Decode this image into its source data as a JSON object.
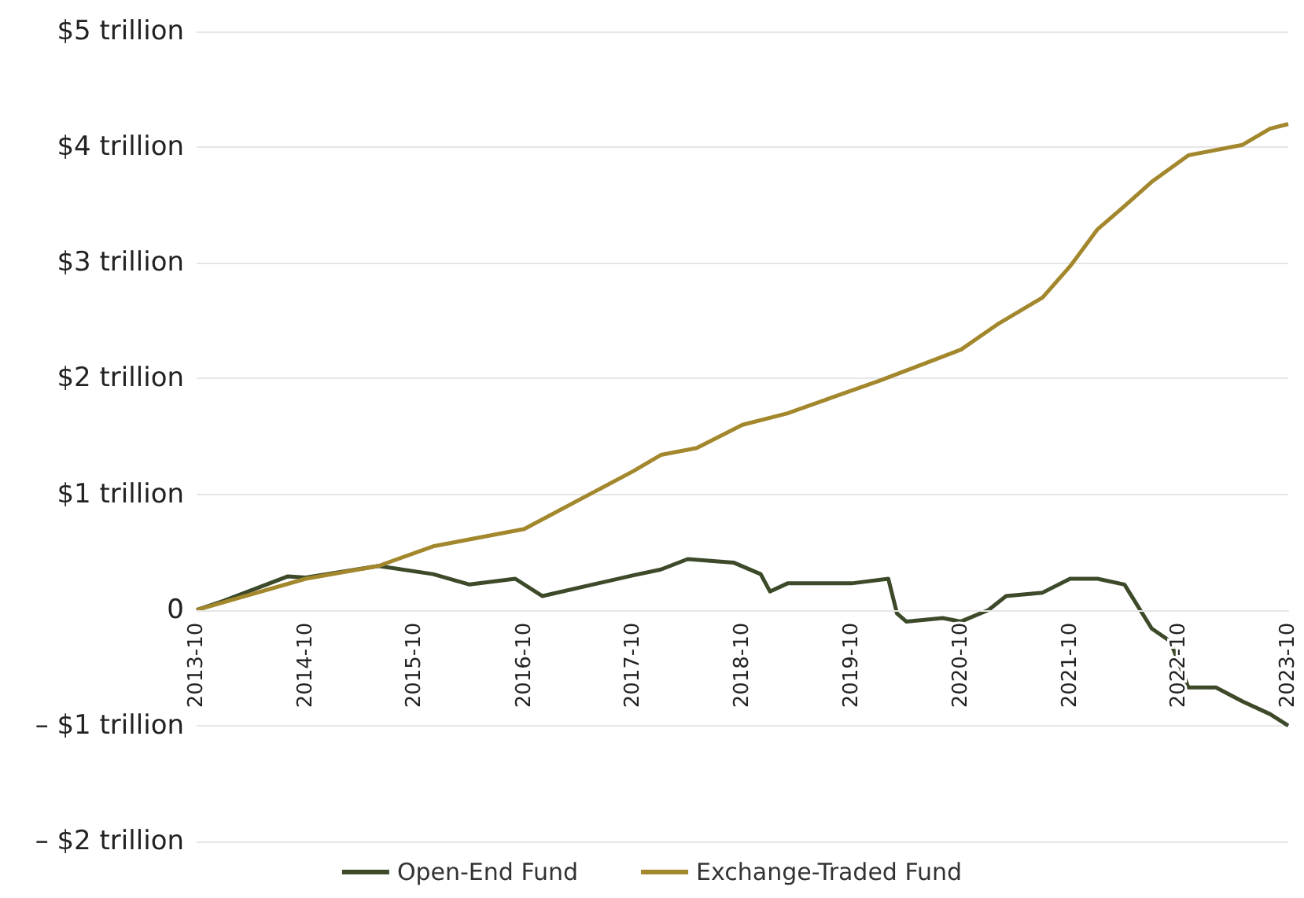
{
  "chart_data": {
    "type": "line",
    "xlim": [
      "2013-10",
      "2023-10"
    ],
    "xticks": [
      "2013-10",
      "2014-10",
      "2015-10",
      "2016-10",
      "2017-10",
      "2018-10",
      "2019-10",
      "2020-10",
      "2021-10",
      "2022-10",
      "2023-10"
    ],
    "ylim": [
      -2,
      5
    ],
    "yticks": [
      {
        "value": -2,
        "label": "– $2 trillion"
      },
      {
        "value": -1,
        "label": "– $1 trillion"
      },
      {
        "value": 0,
        "label": "0"
      },
      {
        "value": 1,
        "label": "$1 trillion"
      },
      {
        "value": 2,
        "label": "$2 trillion"
      },
      {
        "value": 3,
        "label": "$3 trillion"
      },
      {
        "value": 4,
        "label": "$4 trillion"
      },
      {
        "value": 5,
        "label": "$5 trillion"
      }
    ],
    "grid": "y",
    "legend": "bottom",
    "marker": "none",
    "line_style": "solid",
    "series": [
      {
        "name": "Open-End Fund",
        "color": "#3d4a2a",
        "x": [
          "2013-10",
          "2014-01",
          "2014-08",
          "2014-10",
          "2015-06",
          "2015-12",
          "2016-04",
          "2016-09",
          "2016-12",
          "2017-10",
          "2018-01",
          "2018-04",
          "2018-09",
          "2018-12",
          "2019-01",
          "2019-03",
          "2019-10",
          "2020-02",
          "2020-03",
          "2020-04",
          "2020-08",
          "2020-10",
          "2021-01",
          "2021-03",
          "2021-07",
          "2021-10",
          "2022-01",
          "2022-04",
          "2022-07",
          "2022-09",
          "2022-11",
          "2023-02",
          "2023-05",
          "2023-08",
          "2023-10"
        ],
        "values": [
          0,
          0.08,
          0.29,
          0.28,
          0.38,
          0.31,
          0.22,
          0.27,
          0.12,
          0.3,
          0.35,
          0.44,
          0.41,
          0.31,
          0.16,
          0.23,
          0.23,
          0.27,
          -0.03,
          -0.1,
          -0.07,
          -0.1,
          0,
          0.12,
          0.15,
          0.27,
          0.27,
          0.22,
          -0.16,
          -0.27,
          -0.67,
          -0.67,
          -0.79,
          -0.9,
          -1.0
        ]
      },
      {
        "name": "Exchange-Traded Fund",
        "color": "#a3872c",
        "x": [
          "2013-10",
          "2014-10",
          "2015-06",
          "2015-12",
          "2016-10",
          "2017-10",
          "2018-01",
          "2018-05",
          "2018-10",
          "2019-03",
          "2019-08",
          "2020-01",
          "2020-06",
          "2020-10",
          "2021-02",
          "2021-07",
          "2021-10",
          "2022-01",
          "2022-04",
          "2022-07",
          "2022-11",
          "2023-05",
          "2023-08",
          "2023-10"
        ],
        "values": [
          0,
          0.27,
          0.38,
          0.55,
          0.7,
          1.2,
          1.34,
          1.4,
          1.6,
          1.7,
          1.84,
          1.98,
          2.13,
          2.25,
          2.47,
          2.7,
          2.97,
          3.29,
          3.49,
          3.7,
          3.93,
          4.02,
          4.16,
          4.2
        ]
      }
    ]
  }
}
